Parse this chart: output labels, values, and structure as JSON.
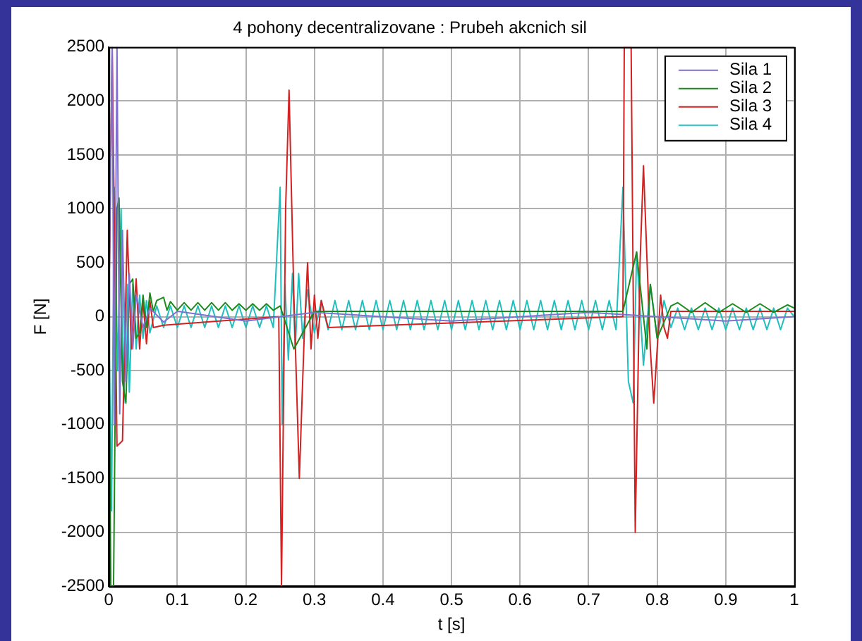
{
  "chart_data": {
    "type": "line",
    "title": "4 pohony decentralizovane : Prubeh akcnich sil",
    "xlabel": "t [s]",
    "ylabel": "F [N]",
    "xlim": [
      0,
      1
    ],
    "xticks": [
      0,
      0.1,
      0.2,
      0.3,
      0.4,
      0.5,
      0.6,
      0.7,
      0.8,
      0.9,
      1
    ],
    "ylim": [
      -2500,
      2500
    ],
    "yticks": [
      -2500,
      -2000,
      -1500,
      -1000,
      -500,
      0,
      500,
      1000,
      1500,
      2000,
      2500
    ],
    "grid": true,
    "legend": "top right",
    "marker": "none",
    "line_style": "solid",
    "series": [
      {
        "name": "Sila 1",
        "color": "#7f6fd0",
        "x": [
          0,
          0.005,
          0.008,
          0.012,
          0.016,
          0.02,
          0.025,
          0.03,
          0.035,
          0.04,
          0.05,
          0.06,
          0.08,
          0.1,
          0.2,
          0.3,
          0.5,
          0.7,
          0.9,
          1
        ],
        "values": [
          0,
          2500,
          -1000,
          2500,
          -900,
          800,
          -600,
          400,
          -300,
          200,
          -100,
          80,
          -50,
          50,
          -40,
          40,
          -40,
          40,
          -40,
          0
        ]
      },
      {
        "name": "Sila 2",
        "color": "#1a8a1a",
        "x": [
          0,
          0.003,
          0.007,
          0.012,
          0.015,
          0.02,
          0.025,
          0.03,
          0.035,
          0.04,
          0.045,
          0.05,
          0.055,
          0.06,
          0.065,
          0.07,
          0.08,
          0.085,
          0.09,
          0.1,
          0.11,
          0.12,
          0.13,
          0.14,
          0.15,
          0.16,
          0.17,
          0.18,
          0.19,
          0.2,
          0.21,
          0.22,
          0.23,
          0.24,
          0.25,
          0.27,
          0.3,
          0.5,
          0.75,
          0.77,
          0.785,
          0.79,
          0.8,
          0.82,
          0.83,
          0.85,
          0.87,
          0.89,
          0.91,
          0.93,
          0.95,
          0.97,
          0.99,
          1
        ],
        "values": [
          0,
          -2500,
          -2500,
          1000,
          1100,
          -600,
          -800,
          300,
          350,
          -200,
          -150,
          200,
          -100,
          220,
          50,
          150,
          180,
          60,
          140,
          60,
          130,
          60,
          130,
          60,
          130,
          60,
          130,
          60,
          120,
          60,
          120,
          60,
          120,
          60,
          100,
          -300,
          50,
          50,
          50,
          600,
          -300,
          300,
          -200,
          100,
          130,
          40,
          130,
          40,
          120,
          40,
          120,
          40,
          110,
          80
        ]
      },
      {
        "name": "Sila 3",
        "color": "#d42020",
        "x": [
          0,
          0.005,
          0.012,
          0.02,
          0.027,
          0.033,
          0.04,
          0.045,
          0.05,
          0.055,
          0.06,
          0.065,
          0.08,
          0.1,
          0.248,
          0.252,
          0.258,
          0.263,
          0.27,
          0.278,
          0.285,
          0.29,
          0.295,
          0.3,
          0.305,
          0.31,
          0.32,
          0.75,
          0.752,
          0.762,
          0.768,
          0.775,
          0.78,
          0.79,
          0.795,
          0.805,
          0.81,
          0.815,
          0.82,
          1
        ],
        "values": [
          0,
          2500,
          -1200,
          -1150,
          800,
          -300,
          350,
          -300,
          150,
          -250,
          150,
          -100,
          -80,
          -70,
          0,
          -2500,
          1000,
          2100,
          200,
          -1500,
          -200,
          500,
          -300,
          200,
          -200,
          150,
          -100,
          0,
          2500,
          2500,
          -2000,
          500,
          1400,
          -300,
          -800,
          200,
          -100,
          -200,
          50,
          50
        ]
      },
      {
        "name": "Sila 4",
        "color": "#1fbfbf",
        "x": [
          0,
          0.004,
          0.008,
          0.013,
          0.018,
          0.022,
          0.027,
          0.03,
          0.035,
          0.04,
          0.045,
          0.05,
          0.055,
          0.06,
          0.07,
          0.08,
          0.09,
          0.1,
          0.11,
          0.12,
          0.13,
          0.14,
          0.15,
          0.16,
          0.17,
          0.18,
          0.19,
          0.2,
          0.21,
          0.22,
          0.23,
          0.24,
          0.25,
          0.253,
          0.257,
          0.262,
          0.268,
          0.272,
          0.277,
          0.283,
          0.29,
          0.3,
          0.31,
          0.32,
          0.33,
          0.34,
          0.35,
          0.36,
          0.37,
          0.38,
          0.39,
          0.4,
          0.41,
          0.42,
          0.43,
          0.44,
          0.45,
          0.46,
          0.47,
          0.48,
          0.49,
          0.5,
          0.51,
          0.52,
          0.53,
          0.54,
          0.55,
          0.56,
          0.57,
          0.58,
          0.59,
          0.6,
          0.61,
          0.62,
          0.63,
          0.64,
          0.65,
          0.66,
          0.67,
          0.68,
          0.69,
          0.7,
          0.71,
          0.72,
          0.73,
          0.74,
          0.75,
          0.758,
          0.765,
          0.77,
          0.78,
          0.79,
          0.8,
          0.81,
          0.82,
          0.83,
          0.84,
          0.85,
          0.86,
          0.87,
          0.88,
          0.89,
          0.9,
          0.91,
          0.92,
          0.93,
          0.94,
          0.95,
          0.96,
          0.97,
          0.98,
          0.99,
          1
        ],
        "values": [
          0,
          -1800,
          1200,
          -500,
          1000,
          -800,
          300,
          -700,
          300,
          -300,
          200,
          -200,
          150,
          -150,
          100,
          -100,
          100,
          -100,
          100,
          -100,
          100,
          -100,
          100,
          -100,
          100,
          -100,
          100,
          -100,
          100,
          -100,
          100,
          -100,
          1200,
          -1000,
          300,
          -400,
          400,
          -300,
          400,
          -200,
          250,
          -150,
          150,
          -120,
          150,
          -120,
          150,
          -120,
          150,
          -120,
          150,
          -120,
          150,
          -120,
          150,
          -120,
          150,
          -120,
          150,
          -120,
          150,
          -120,
          150,
          -120,
          150,
          -120,
          150,
          -120,
          150,
          -120,
          150,
          -120,
          150,
          -120,
          150,
          -120,
          150,
          -120,
          150,
          -120,
          150,
          -120,
          150,
          -120,
          150,
          -120,
          1200,
          -600,
          -800,
          600,
          -450,
          300,
          -200,
          150,
          -100,
          80,
          -120,
          80,
          -120,
          80,
          -120,
          80,
          -120,
          80,
          -120,
          80,
          -120,
          80,
          -120,
          80,
          -120,
          80,
          0
        ]
      }
    ]
  }
}
